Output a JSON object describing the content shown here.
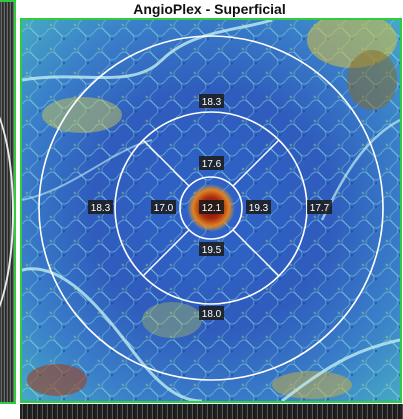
{
  "title": "AngioPlex - Superficial",
  "sectors": {
    "center": "12.1",
    "inner_top": "17.6",
    "inner_left": "17.0",
    "inner_right": "19.3",
    "inner_bottom": "19.5",
    "outer_top": "18.3",
    "outer_left": "18.3",
    "outer_right": "17.7",
    "outer_bottom": "18.0"
  },
  "colors": {
    "frame": "#2ecc40",
    "map_low": "#2b4fb8",
    "map_mid": "#3fb0c8",
    "map_high": "#e0d040",
    "center_hot": "#8b1a0a"
  }
}
